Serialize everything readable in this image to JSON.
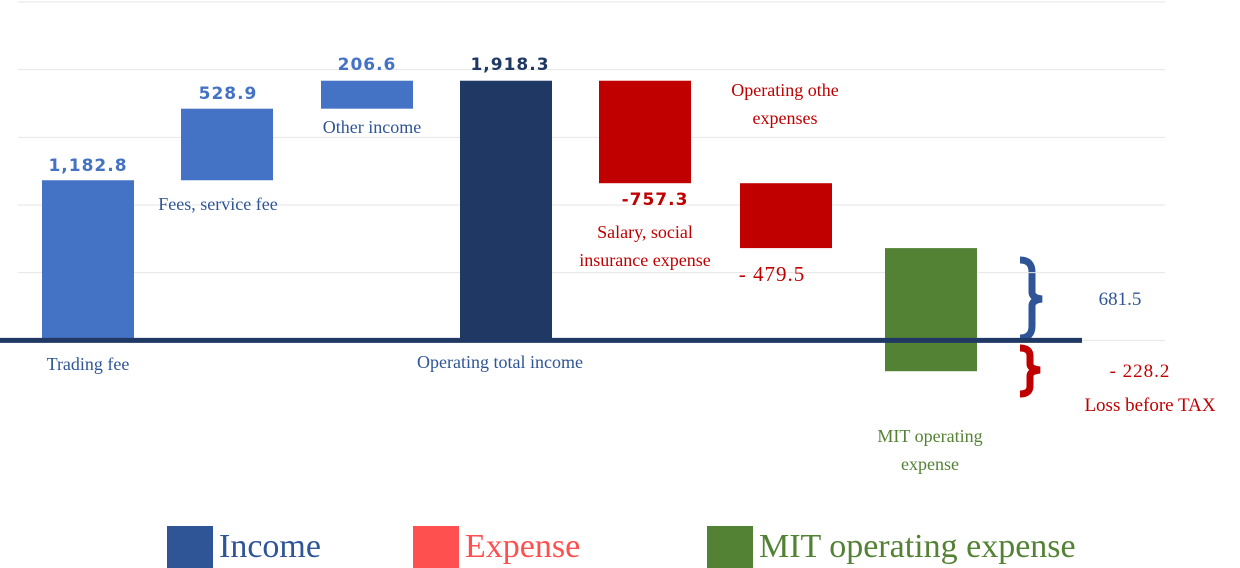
{
  "chart_data": {
    "type": "waterfall",
    "categories": [
      "Trading fee",
      "Fees, service fee",
      "Other income",
      "Operating total income",
      "Salary, social insurance expense",
      "Operating othe expenses",
      "MIT operating expense"
    ],
    "measure": [
      "relative",
      "relative",
      "relative",
      "total",
      "relative",
      "relative",
      "span"
    ],
    "values": [
      1182.8,
      528.9,
      206.6,
      1918.3,
      -757.3,
      -479.5,
      null
    ],
    "value_labels": [
      "1,182.8",
      "528.9",
      "206.6",
      "1,918.3",
      "-757.3",
      "- 479.5",
      null
    ],
    "colors": [
      "#4472c4",
      "#4472c4",
      "#4472c4",
      "#1f3864",
      "#c00000",
      "#c00000",
      "#548235"
    ],
    "annotations": [
      {
        "value": 681.5,
        "label": "681.5"
      },
      {
        "value": -228.2,
        "label": "- 228.2",
        "text": "Loss before TAX"
      }
    ],
    "ylim": [
      -500,
      2500
    ],
    "yticks": [
      0,
      500,
      1000,
      1500,
      2000,
      2500
    ],
    "grid": true,
    "legend": [
      {
        "name": "Income",
        "color": "#2f5597"
      },
      {
        "name": "Expense",
        "color": "#ff5050"
      },
      {
        "name": "MIT operating expense",
        "color": "#548235"
      }
    ]
  }
}
